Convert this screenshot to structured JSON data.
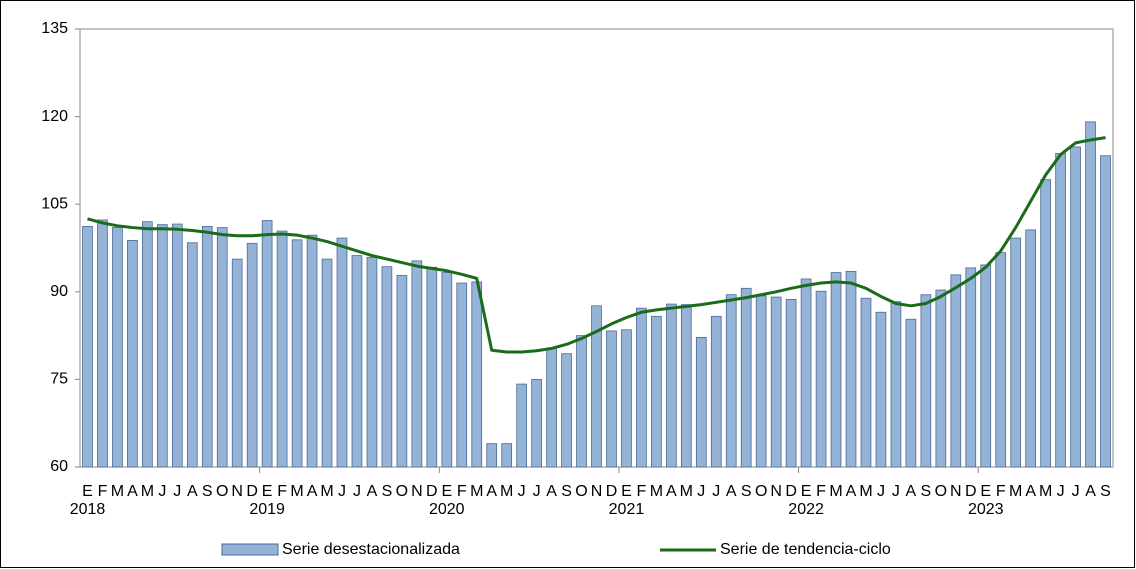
{
  "chart_data": {
    "type": "bar-line",
    "categories": [
      "E",
      "F",
      "M",
      "A",
      "M",
      "J",
      "J",
      "A",
      "S",
      "O",
      "N",
      "D",
      "E",
      "F",
      "M",
      "A",
      "M",
      "J",
      "J",
      "A",
      "S",
      "O",
      "N",
      "D",
      "E",
      "F",
      "M",
      "A",
      "M",
      "J",
      "J",
      "A",
      "S",
      "O",
      "N",
      "D",
      "E",
      "F",
      "M",
      "A",
      "M",
      "J",
      "J",
      "A",
      "S",
      "O",
      "N",
      "D",
      "E",
      "F",
      "M",
      "A",
      "M",
      "J",
      "J",
      "A",
      "S",
      "O",
      "N",
      "D",
      "E",
      "F",
      "M",
      "A",
      "M",
      "J",
      "J",
      "A",
      "S"
    ],
    "years": [
      "2018",
      "2019",
      "2020",
      "2021",
      "2022",
      "2023"
    ],
    "series": [
      {
        "name": "Serie desestacionalizada",
        "type": "bar",
        "color": "#95b3d7",
        "values": [
          101.2,
          102.3,
          101.0,
          98.8,
          102.0,
          101.5,
          101.6,
          98.4,
          101.2,
          101.0,
          95.6,
          98.3,
          102.2,
          100.4,
          98.9,
          99.7,
          95.6,
          99.2,
          96.2,
          95.9,
          94.3,
          92.8,
          95.3,
          94.2,
          93.3,
          91.5,
          91.7,
          64.0,
          64.0,
          74.2,
          75.0,
          80.4,
          79.4,
          82.5,
          87.6,
          83.3,
          83.5,
          87.2,
          85.8,
          87.9,
          87.8,
          82.2,
          85.8,
          89.5,
          90.6,
          89.3,
          89.1,
          88.7,
          92.2,
          90.1,
          93.3,
          93.5,
          88.9,
          86.5,
          88.3,
          85.3,
          89.5,
          90.3,
          92.9,
          94.1,
          94.6,
          96.7,
          99.2,
          100.6,
          109.2,
          113.7,
          114.8,
          119.1,
          113.3
        ]
      },
      {
        "name": "Serie de tendencia-ciclo",
        "type": "line",
        "color": "#1a6b1a",
        "values": [
          102.5,
          101.8,
          101.3,
          101.0,
          100.8,
          100.8,
          100.7,
          100.5,
          100.2,
          99.8,
          99.6,
          99.6,
          99.8,
          99.9,
          99.7,
          99.2,
          98.6,
          97.8,
          97.0,
          96.2,
          95.6,
          95.0,
          94.4,
          94.0,
          93.6,
          93.0,
          92.3,
          80.0,
          79.7,
          79.7,
          79.9,
          80.3,
          81.0,
          82.0,
          83.2,
          84.5,
          85.6,
          86.5,
          86.9,
          87.2,
          87.5,
          87.8,
          88.2,
          88.6,
          89.0,
          89.5,
          90.0,
          90.6,
          91.1,
          91.5,
          91.7,
          91.5,
          90.6,
          89.2,
          88.0,
          87.6,
          88.0,
          89.2,
          90.7,
          92.3,
          94.2,
          97.0,
          101.0,
          105.5,
          110.0,
          113.5,
          115.5,
          116.0,
          116.4
        ]
      }
    ],
    "ylim": [
      60,
      135
    ],
    "yticks": [
      60,
      75,
      90,
      105,
      120,
      135
    ],
    "grid": false
  }
}
